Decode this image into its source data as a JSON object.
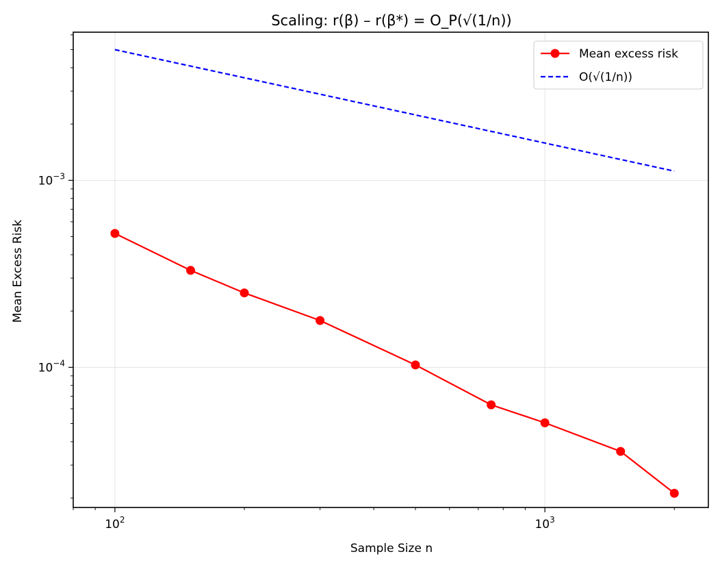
{
  "chart_data": {
    "type": "line",
    "title": "Scaling: r(β) – r(β*) = O_P(√(1/n))",
    "xlabel": "Sample Size n",
    "ylabel": "Mean Excess Risk",
    "xscale": "log",
    "yscale": "log",
    "xlim": [
      80,
      2400
    ],
    "ylim": [
      1.78e-05,
      0.0062
    ],
    "grid": true,
    "legend_position": "top-right",
    "xticks": [
      {
        "value": 100,
        "base": "10",
        "exp": "2"
      },
      {
        "value": 1000,
        "base": "10",
        "exp": "3"
      }
    ],
    "yticks": [
      {
        "value": 0.0001,
        "base": "10",
        "exp": "−4"
      },
      {
        "value": 0.001,
        "base": "10",
        "exp": "−3"
      }
    ],
    "series": [
      {
        "name": "Mean excess risk",
        "style": "solid-marker",
        "color": "#ff0000",
        "x": [
          100,
          150,
          200,
          300,
          500,
          750,
          1000,
          1500,
          2000
        ],
        "y": [
          0.00052,
          0.00033,
          0.00025,
          0.000178,
          0.000103,
          6.3e-05,
          5.05e-05,
          3.55e-05,
          2.12e-05
        ]
      },
      {
        "name": "O(√(1/n))",
        "style": "dashed",
        "color": "#0000ff",
        "x": [
          100,
          2000
        ],
        "y": [
          0.005,
          0.00112
        ]
      }
    ]
  }
}
